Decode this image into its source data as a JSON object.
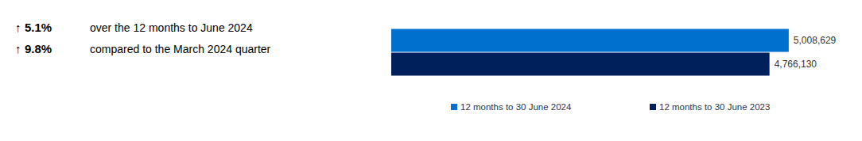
{
  "chart_data": {
    "type": "bar",
    "orientation": "horizontal",
    "annotations": [
      {
        "symbol": "↑",
        "value": "5.1%",
        "text": "over the 12 months to June 2024"
      },
      {
        "symbol": "↑",
        "value": "9.8%",
        "text": "compared to the March 2024 quarter"
      }
    ],
    "categories": [
      null
    ],
    "series": [
      {
        "name": "12 months to 30 June 2024",
        "color": "#0070cf",
        "values": [
          5008629
        ],
        "value_labels": [
          "5,008,629"
        ]
      },
      {
        "name": "12 months to 30 June 2023",
        "color": "#00205c",
        "values": [
          4766130
        ],
        "value_labels": [
          "4,766,130"
        ]
      }
    ],
    "xlim": [
      0,
      5010000
    ],
    "tick_labels": false,
    "grid": false,
    "data_labels": true,
    "legend": "bottom"
  }
}
